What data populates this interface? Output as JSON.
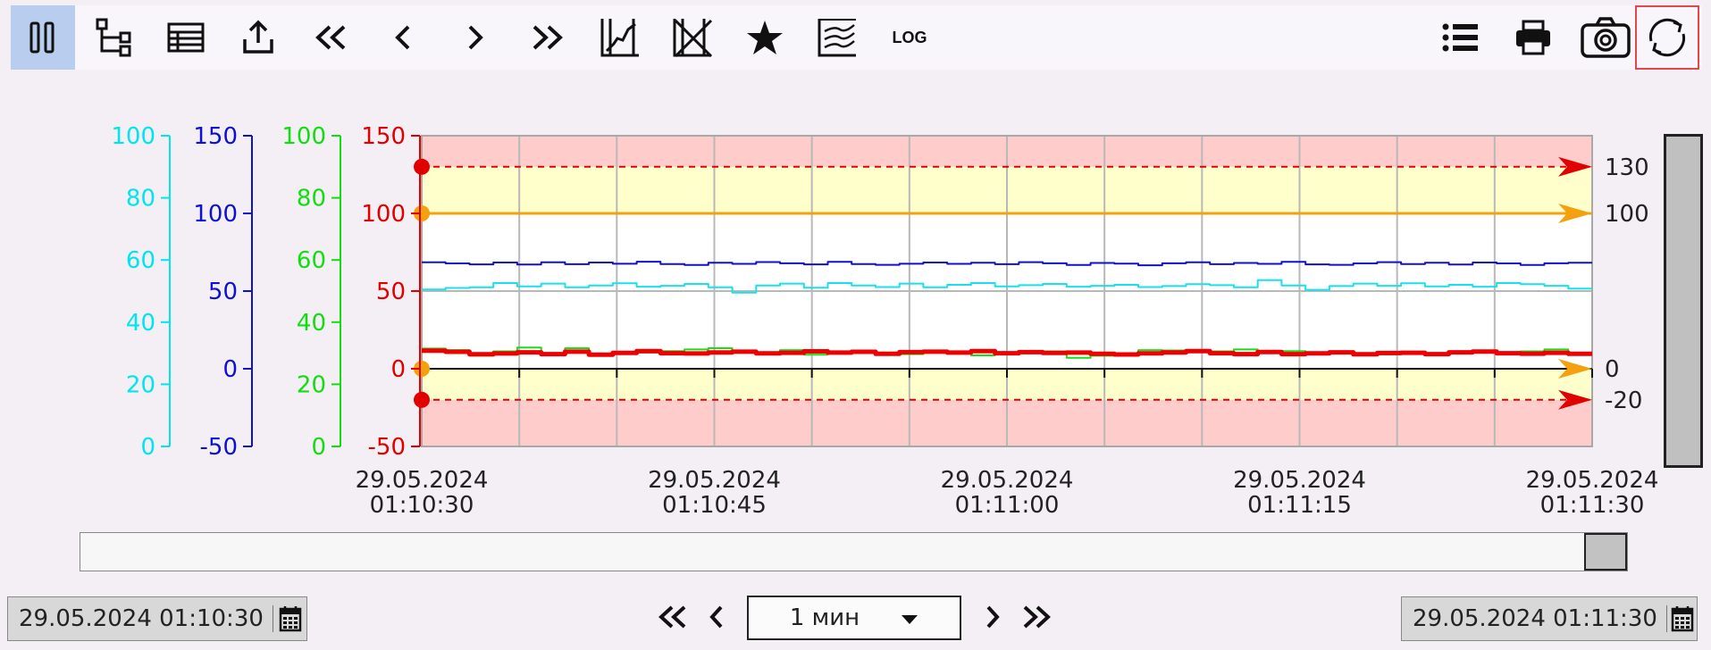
{
  "toolbar": {
    "log_label": "LOG",
    "buttons": [
      "pause",
      "tree",
      "table",
      "export",
      "first",
      "prev",
      "next",
      "last",
      "fit-chart",
      "clear-chart",
      "favorite",
      "stacked-view",
      "log-scale",
      "legend",
      "print",
      "screenshot",
      "refresh"
    ]
  },
  "chart_data": {
    "type": "line",
    "x_range": [
      "29.05.2024 01:10:30",
      "29.05.2024 01:11:30"
    ],
    "x_ticks": [
      {
        "date": "29.05.2024",
        "time": "01:10:30"
      },
      {
        "date": "29.05.2024",
        "time": "01:10:45"
      },
      {
        "date": "29.05.2024",
        "time": "01:11:00"
      },
      {
        "date": "29.05.2024",
        "time": "01:11:15"
      },
      {
        "date": "29.05.2024",
        "time": "01:11:30"
      }
    ],
    "axes": [
      {
        "color": "#00e5f0",
        "range": [
          0,
          100
        ],
        "ticks": [
          "100",
          "80",
          "60",
          "40",
          "20",
          "0"
        ]
      },
      {
        "color": "#1010d0",
        "range": [
          -50,
          150
        ],
        "ticks": [
          "150",
          "100",
          "50",
          "0",
          "-50"
        ]
      },
      {
        "color": "#11dd11",
        "range": [
          0,
          100
        ],
        "ticks": [
          "100",
          "80",
          "60",
          "40",
          "20",
          "0"
        ]
      },
      {
        "color": "#e00000",
        "range": [
          -50,
          150
        ],
        "ticks": [
          "150",
          "100",
          "50",
          "0",
          "-50"
        ]
      }
    ],
    "limits": [
      {
        "label": "130",
        "value": 130,
        "color": "#e00000"
      },
      {
        "label": "100",
        "value": 100,
        "color": "#f5a00f"
      },
      {
        "label": "0",
        "value": 0,
        "color": "#f5a00f"
      },
      {
        "label": "-20",
        "value": -20,
        "color": "#e00000"
      }
    ],
    "series": [
      {
        "color": "#1010d0",
        "axis": 1,
        "width": 2,
        "values": [
          68.5,
          67.8,
          67.2,
          68.4,
          67.1,
          68.5,
          67.3,
          68.4,
          67.6,
          68.9,
          67.4,
          66.8,
          68.2,
          67.5,
          68.7,
          67.9,
          67.2,
          68.8,
          67.4,
          66.9,
          67.6,
          68.4,
          67.5,
          68.2,
          67.3,
          68.6,
          67.9,
          66.8,
          68.1,
          67.7,
          66.6,
          67.9,
          68.5,
          67.3,
          68.1,
          67.5,
          68.8,
          67.2,
          66.9,
          67.8,
          68.6,
          67.4,
          68.3,
          67.1,
          68.4,
          67.8,
          66.8,
          67.9,
          68.3
        ]
      },
      {
        "color": "#18e0ec",
        "axis": 0,
        "width": 2,
        "values": [
          50.5,
          51.0,
          51.2,
          52.6,
          51.5,
          52.4,
          51.2,
          51.8,
          52.5,
          51.4,
          51.7,
          52.3,
          51.2,
          49.5,
          51.8,
          52.4,
          51.1,
          52.6,
          51.8,
          51.3,
          52.4,
          51.2,
          52.0,
          52.6,
          51.5,
          51.9,
          52.3,
          51.4,
          51.7,
          52.0,
          51.3,
          51.6,
          52.2,
          51.9,
          51.2,
          53.5,
          51.8,
          50.4,
          51.6,
          52.4,
          51.7,
          52.5,
          51.5,
          52.0,
          51.4,
          52.6,
          52.2,
          51.7,
          50.8
        ]
      },
      {
        "color": "#19dd19",
        "axis": 2,
        "width": 2,
        "values": [
          31.5,
          31.0,
          29.2,
          30.6,
          31.8,
          30.0,
          31.6,
          29.4,
          30.4,
          30.2,
          30.7,
          31.2,
          31.6,
          30.8,
          30.2,
          31.0,
          29.5,
          30.5,
          30.1,
          30.2,
          29.7,
          30.5,
          30.2,
          29.3,
          30.3,
          30.0,
          30.6,
          28.5,
          29.2,
          29.8,
          31.0,
          30.9,
          30.5,
          30.6,
          31.2,
          30.1,
          30.7,
          29.8,
          30.4,
          30.0,
          29.6,
          30.4,
          30.0,
          30.5,
          30.8,
          30.3,
          30.6,
          31.2,
          30.1
        ]
      },
      {
        "color": "#ee0000",
        "axis": 3,
        "width": 5,
        "values": [
          11.6,
          10.9,
          9.3,
          9.8,
          10.6,
          9.4,
          11.0,
          9.1,
          10.2,
          11.3,
          10.0,
          9.8,
          10.5,
          11.0,
          9.9,
          10.3,
          11.2,
          10.4,
          10.9,
          9.6,
          10.7,
          11.0,
          10.4,
          11.3,
          10.0,
          10.7,
          10.2,
          10.4,
          9.6,
          9.2,
          9.9,
          10.5,
          11.3,
          10.0,
          9.4,
          10.8,
          9.4,
          9.9,
          10.6,
          9.3,
          10.1,
          10.3,
          9.4,
          10.6,
          11.1,
          10.0,
          9.7,
          10.3,
          9.6
        ]
      }
    ]
  },
  "range": {
    "from": "29.05.2024 01:10:30",
    "to": "29.05.2024 01:11:30",
    "period_label": "1 мин"
  }
}
